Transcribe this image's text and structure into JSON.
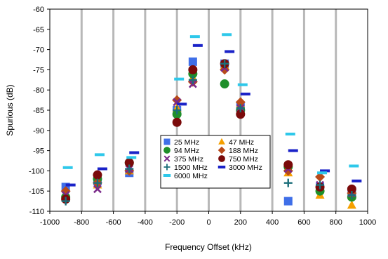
{
  "chart_data": {
    "type": "scatter",
    "xlabel": "Frequency Offset (kHz)",
    "ylabel": "Spurious (dB)",
    "xlim": [
      -1000,
      1000
    ],
    "ylim": [
      -110,
      -60
    ],
    "xticks": [
      -1000,
      -800,
      -600,
      -400,
      -200,
      0,
      200,
      400,
      600,
      800,
      1000
    ],
    "yticks": [
      -60,
      -65,
      -70,
      -75,
      -80,
      -85,
      -90,
      -95,
      -100,
      -105,
      -110
    ],
    "grid": "vertical",
    "legend_position": "inside-center-bottom",
    "series": [
      {
        "name": "25 MHz",
        "marker": "square",
        "color": "#3f6fe8",
        "points": [
          [
            -900,
            -104
          ],
          [
            -700,
            -102.5
          ],
          [
            -500,
            -100.5
          ],
          [
            -200,
            -85
          ],
          [
            -100,
            -73
          ],
          [
            100,
            -73.5
          ],
          [
            200,
            -84
          ],
          [
            500,
            -107.5
          ],
          [
            700,
            -104
          ],
          [
            900,
            -105
          ]
        ]
      },
      {
        "name": "47 MHz",
        "marker": "triangle",
        "color": "#f5a000",
        "points": [
          [
            -900,
            -106.5
          ],
          [
            -700,
            -103.5
          ],
          [
            -500,
            -100
          ],
          [
            -200,
            -84.5
          ],
          [
            -100,
            -77
          ],
          [
            100,
            -74
          ],
          [
            200,
            -83.5
          ],
          [
            500,
            -100.5
          ],
          [
            700,
            -106
          ],
          [
            900,
            -108.5
          ]
        ]
      },
      {
        "name": "94 MHz",
        "marker": "circle",
        "color": "#1f8f2a",
        "points": [
          [
            -900,
            -106.5
          ],
          [
            -700,
            -102
          ],
          [
            -500,
            -98
          ],
          [
            -200,
            -86
          ],
          [
            -100,
            -76
          ],
          [
            100,
            -78.5
          ],
          [
            200,
            -85
          ],
          [
            500,
            -99
          ],
          [
            700,
            -105
          ],
          [
            900,
            -106.5
          ]
        ]
      },
      {
        "name": "188 MHz",
        "marker": "diamond",
        "color": "#b84a1a",
        "points": [
          [
            -900,
            -105
          ],
          [
            -700,
            -103
          ],
          [
            -500,
            -100
          ],
          [
            -200,
            -82.5
          ],
          [
            -100,
            -78
          ],
          [
            100,
            -75
          ],
          [
            200,
            -83
          ],
          [
            500,
            -100
          ],
          [
            700,
            -101.5
          ],
          [
            900,
            -105.5
          ]
        ]
      },
      {
        "name": "375 MHz",
        "marker": "x",
        "color": "#7a2a8a",
        "points": [
          [
            -900,
            -106
          ],
          [
            -700,
            -104.5
          ],
          [
            -500,
            -99.5
          ],
          [
            -200,
            -83
          ],
          [
            -100,
            -78.5
          ],
          [
            100,
            -74.5
          ],
          [
            200,
            -84.5
          ],
          [
            500,
            -99.5
          ],
          [
            700,
            -103.5
          ],
          [
            900,
            -105.5
          ]
        ]
      },
      {
        "name": "750 MHz",
        "marker": "circle",
        "color": "#7a0a0a",
        "points": [
          [
            -900,
            -107
          ],
          [
            -700,
            -101
          ],
          [
            -500,
            -98
          ],
          [
            -200,
            -88
          ],
          [
            -100,
            -75
          ],
          [
            100,
            -73.5
          ],
          [
            200,
            -86
          ],
          [
            500,
            -98.5
          ],
          [
            700,
            -104
          ],
          [
            900,
            -104.5
          ]
        ]
      },
      {
        "name": "1500 MHz",
        "marker": "plus",
        "color": "#1b6e7a",
        "points": [
          [
            -900,
            -107.5
          ],
          [
            -700,
            -103
          ],
          [
            -500,
            -99.5
          ],
          [
            -200,
            -85
          ],
          [
            -100,
            -77.5
          ],
          [
            100,
            -73.5
          ],
          [
            200,
            -84.5
          ],
          [
            500,
            -103
          ],
          [
            700,
            -103.5
          ],
          [
            900,
            -106
          ]
        ]
      },
      {
        "name": "3000 MHz",
        "marker": "dash",
        "color": "#1a22c8",
        "points": [
          [
            -900,
            -103.5
          ],
          [
            -700,
            -99.5
          ],
          [
            -500,
            -95.5
          ],
          [
            -200,
            -83.5
          ],
          [
            -100,
            -69
          ],
          [
            100,
            -70.5
          ],
          [
            200,
            -81
          ],
          [
            500,
            -95
          ],
          [
            700,
            -100
          ],
          [
            900,
            -102.5
          ]
        ]
      },
      {
        "name": "6000 MHz",
        "marker": "dash",
        "color": "#2ec8ea",
        "points": [
          [
            -900,
            -99.2
          ],
          [
            -700,
            -96
          ],
          [
            -500,
            -96.7
          ],
          [
            -200,
            -77.3
          ],
          [
            -100,
            -66.8
          ],
          [
            100,
            -66.3
          ],
          [
            200,
            -78.7
          ],
          [
            500,
            -90.9
          ],
          [
            700,
            -100.5
          ],
          [
            900,
            -98.8
          ]
        ]
      }
    ]
  }
}
